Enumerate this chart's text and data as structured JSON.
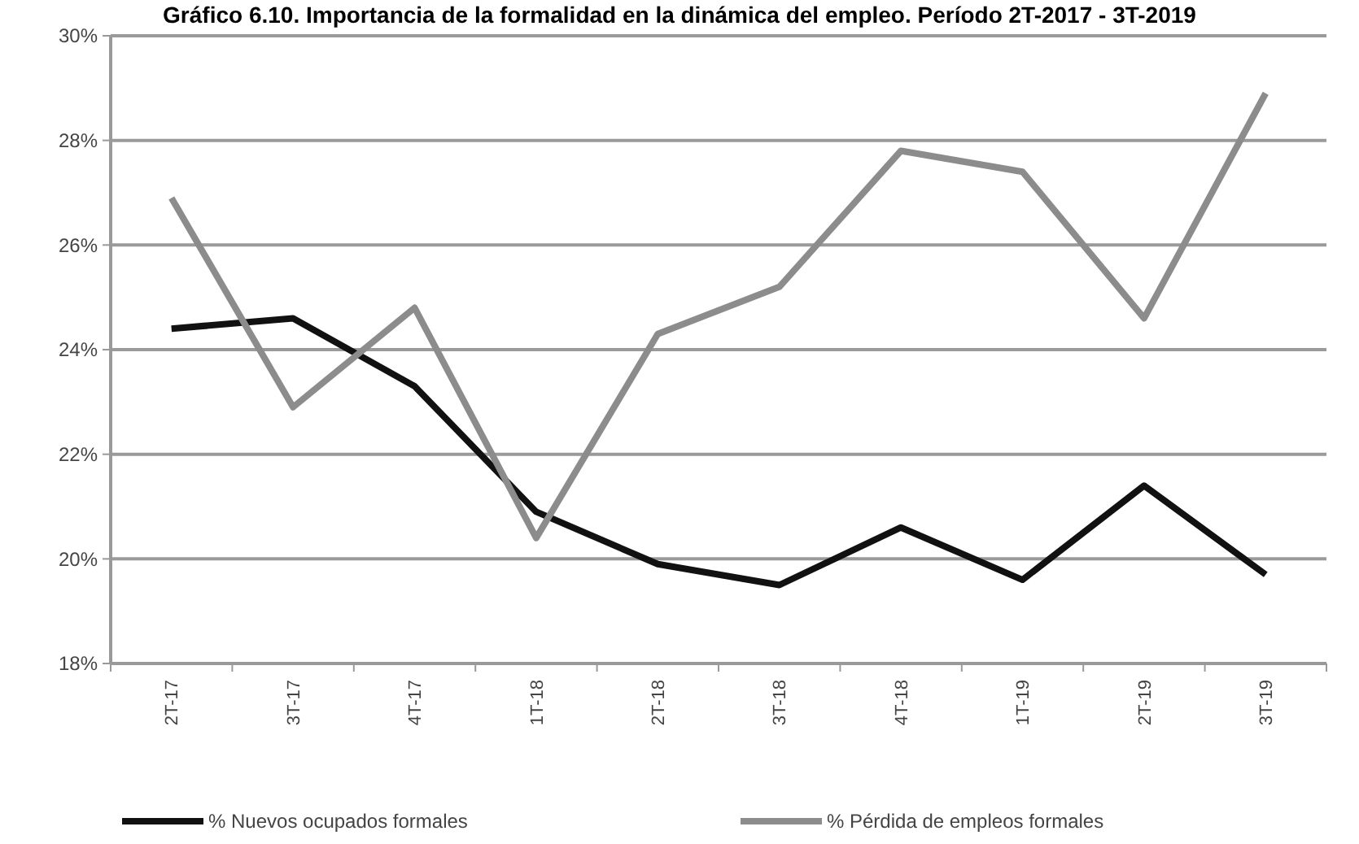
{
  "chart_data": {
    "type": "line",
    "title": "Gráfico 6.10. Importancia de la formalidad en la dinámica del empleo. Período 2T-2017 - 3T-2019",
    "categories": [
      "2T-17",
      "3T-17",
      "4T-17",
      "1T-18",
      "2T-18",
      "3T-18",
      "4T-18",
      "1T-19",
      "2T-19",
      "3T-19"
    ],
    "series": [
      {
        "name": "% Nuevos ocupados formales",
        "color": "#111111",
        "values": [
          24.4,
          24.6,
          23.3,
          20.9,
          19.9,
          19.5,
          20.6,
          19.6,
          21.4,
          19.7
        ]
      },
      {
        "name": "% Pérdida de empleos formales",
        "color": "#8c8c8c",
        "values": [
          26.9,
          22.9,
          24.8,
          20.4,
          24.3,
          25.2,
          27.8,
          27.4,
          24.6,
          28.9
        ]
      }
    ],
    "ylim": [
      18,
      30
    ],
    "yticks": [
      {
        "value": 18,
        "label": "18%"
      },
      {
        "value": 20,
        "label": "20%"
      },
      {
        "value": 22,
        "label": "22%"
      },
      {
        "value": 24,
        "label": "24%"
      },
      {
        "value": 26,
        "label": "26%"
      },
      {
        "value": 28,
        "label": "28%"
      },
      {
        "value": 30,
        "label": "30%"
      }
    ],
    "grid": "y",
    "legend": "bottom",
    "marker": "none",
    "line_style": "solid"
  }
}
